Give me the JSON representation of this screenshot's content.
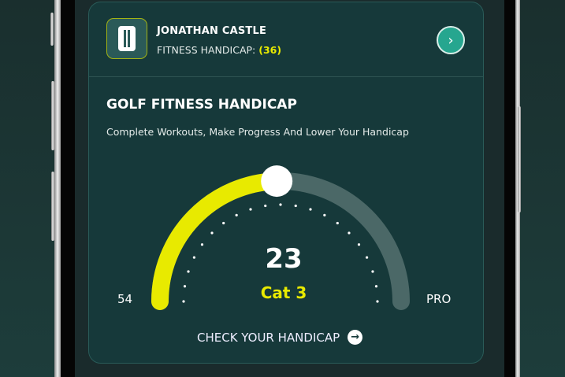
{
  "profile": {
    "name": "JONATHAN CASTLE",
    "handicap_label": "FITNESS HANDICAP:",
    "handicap_value": "(36)"
  },
  "section": {
    "title": "GOLF FITNESS HANDICAP",
    "subtitle": "Complete Workouts, Make Progress And Lower Your Handicap"
  },
  "gauge": {
    "value": "23",
    "category": "Cat 3",
    "min_label": "54",
    "max_label": "PRO",
    "progress_fraction": 0.49,
    "fill_color": "#e8ea00",
    "track_color": "#4b6867"
  },
  "cta": {
    "label": "CHECK YOUR HANDICAP",
    "icon": "arrow-right-circle-icon"
  },
  "icons": {
    "logo": "app-logo-icon",
    "go": "chevron-right-icon"
  }
}
